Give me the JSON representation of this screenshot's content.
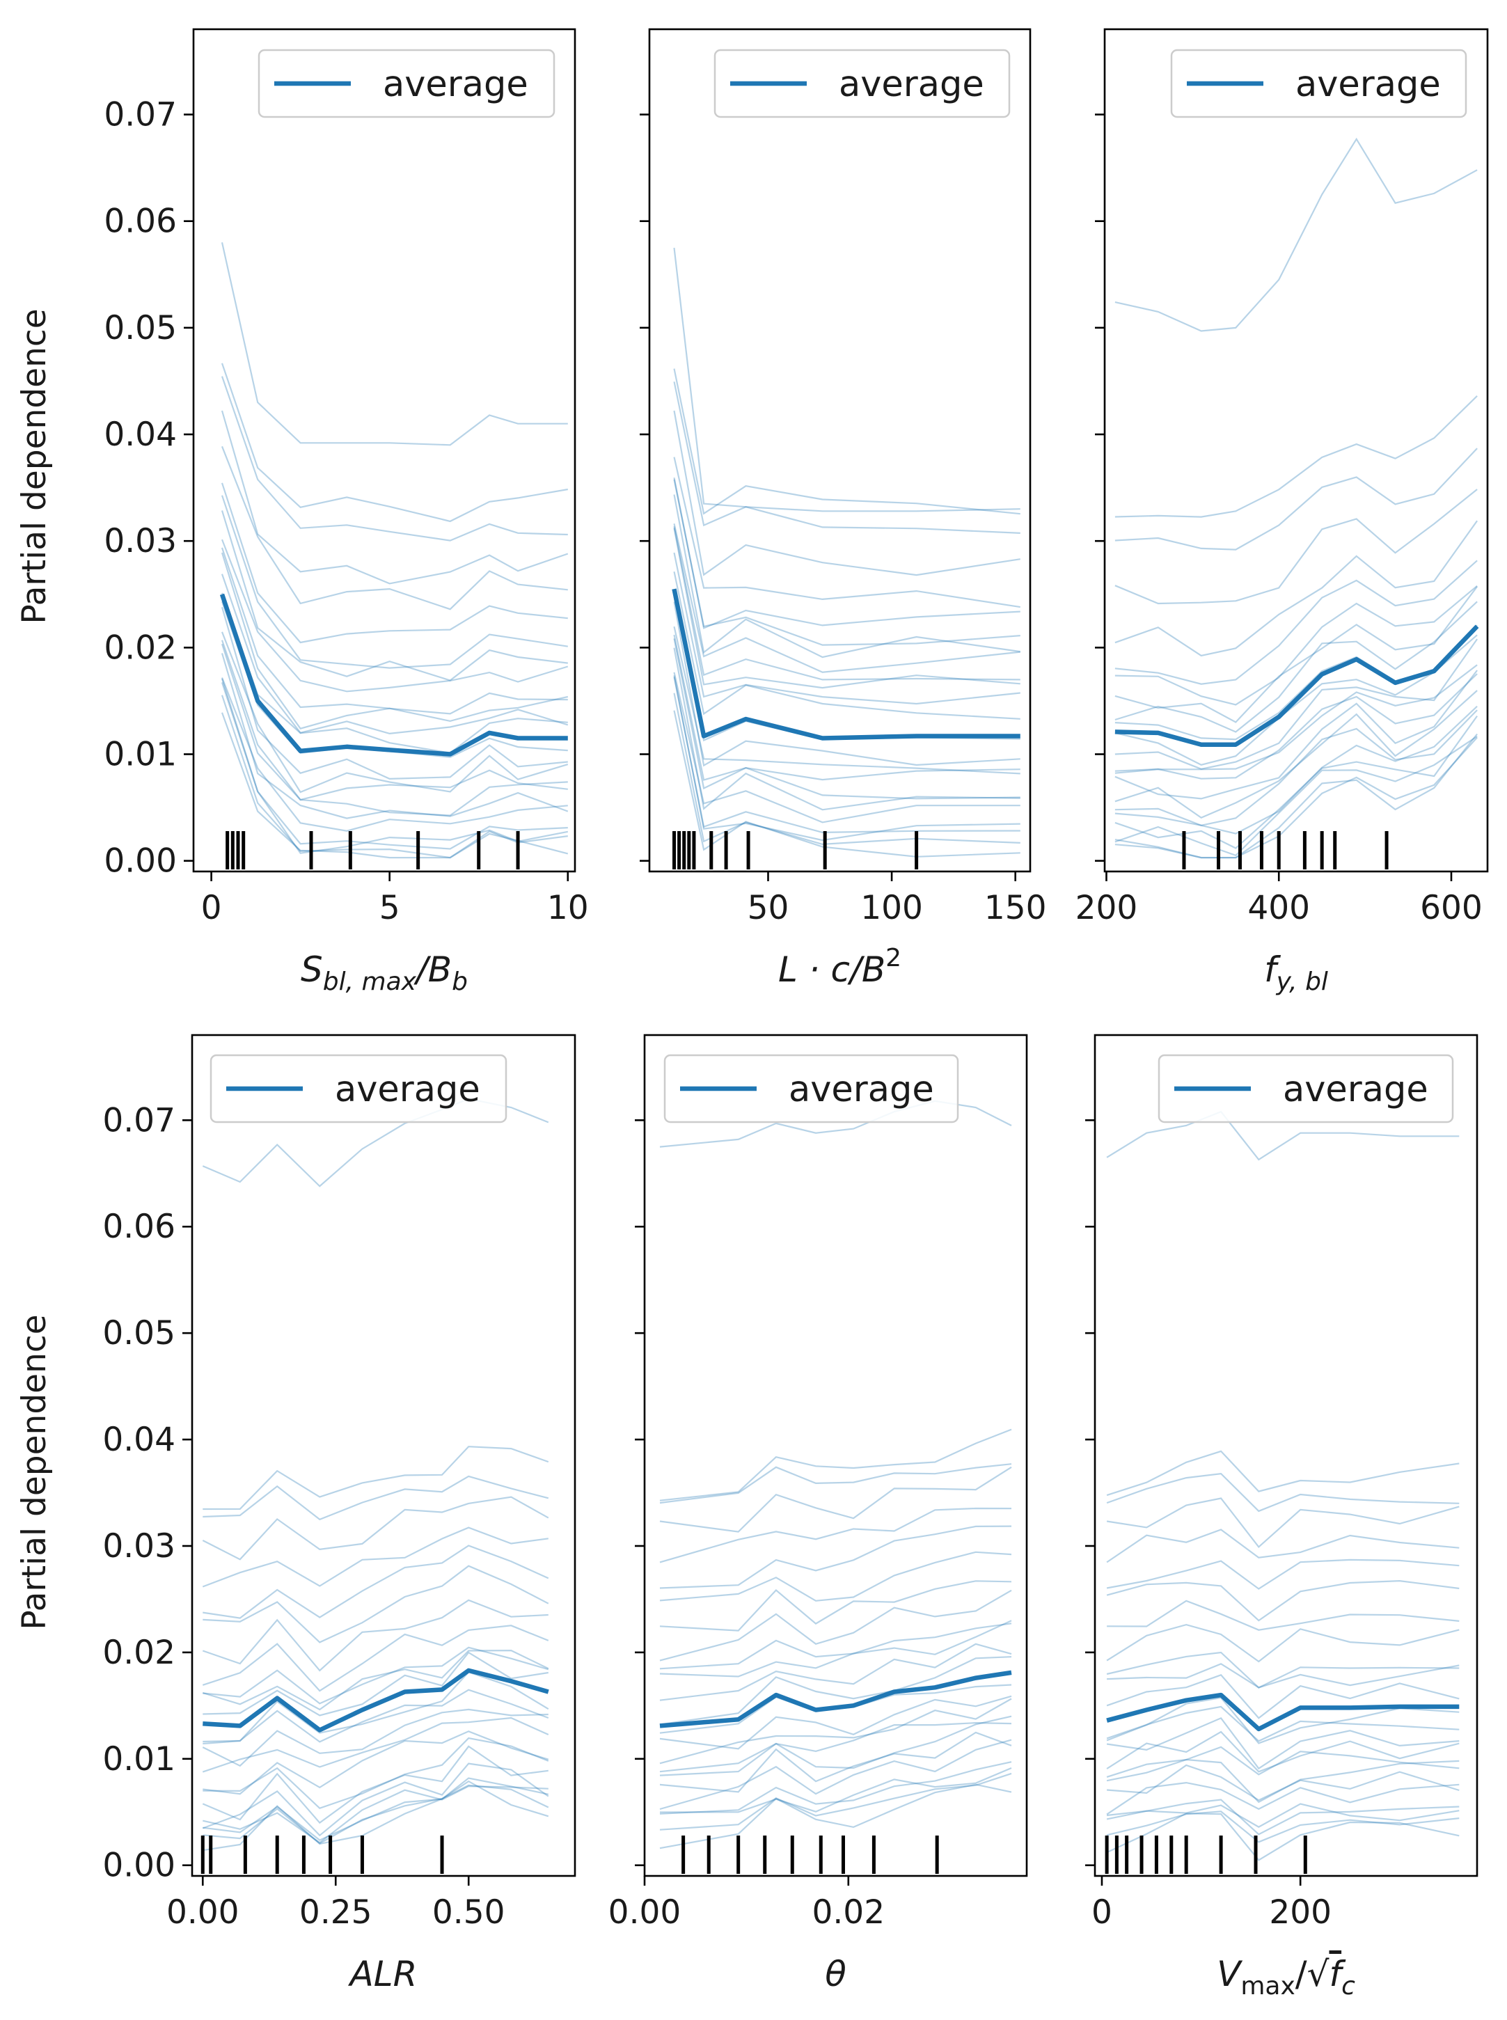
{
  "colors": {
    "line": "#1f77b4",
    "axes": "#000000",
    "rug": "#000000",
    "legend_border": "#cccccc"
  },
  "chart_data": [
    {
      "type": "line",
      "title": "",
      "xlabel": "S_bl,max / B_b",
      "xlabel_parts": {
        "base": "S",
        "sub": "bl, max",
        "mid": "/B",
        "sub2": "b"
      },
      "ylabel": "Partial dependence",
      "xlim": [
        -0.5,
        10.2
      ],
      "ylim": [
        -0.001,
        0.078
      ],
      "xticks": [
        0,
        5,
        10
      ],
      "xtick_labels": [
        "0",
        "5",
        "10"
      ],
      "yticks": [
        0,
        0.01,
        0.02,
        0.03,
        0.04,
        0.05,
        0.06,
        0.07
      ],
      "ytick_labels": [
        "0.00",
        "0.01",
        "0.02",
        "0.03",
        "0.04",
        "0.05",
        "0.06",
        "0.07"
      ],
      "legend": [
        "average"
      ],
      "x": [
        0.3,
        1.3,
        2.5,
        3.8,
        5.0,
        6.7,
        7.8,
        8.6,
        10.0
      ],
      "average": [
        0.025,
        0.015,
        0.0103,
        0.0107,
        0.0104,
        0.01,
        0.012,
        0.0115,
        0.0115
      ],
      "ice_top": [
        0.058,
        0.043,
        0.0392,
        0.0392,
        0.0392,
        0.039,
        0.0418,
        0.041,
        0.041
      ],
      "ice_offsets": [
        0.0225,
        0.02,
        0.0165,
        0.0145,
        0.011,
        0.0085,
        0.0075,
        0.006,
        0.0045,
        0.003,
        0.002,
        0.001,
        -0.001,
        -0.002,
        -0.003,
        -0.004,
        -0.005,
        -0.006,
        -0.007,
        -0.008,
        -0.0088,
        -0.0095,
        -0.0102
      ],
      "rug": [
        0.45,
        0.6,
        0.75,
        0.9,
        2.8,
        3.9,
        5.8,
        7.5,
        8.6
      ]
    },
    {
      "type": "line",
      "title": "",
      "xlabel": "L · c / B²",
      "xlabel_parts": {
        "base": "L · c/B",
        "sup": "2"
      },
      "ylabel": "",
      "xlim": [
        2.0,
        156.0
      ],
      "ylim": [
        -0.001,
        0.078
      ],
      "xticks": [
        50,
        100,
        150
      ],
      "xtick_labels": [
        "50",
        "100",
        "150"
      ],
      "yticks": [
        0,
        0.01,
        0.02,
        0.03,
        0.04,
        0.05,
        0.06,
        0.07
      ],
      "ytick_labels": [],
      "legend": [
        "average"
      ],
      "x": [
        12,
        24,
        41,
        72,
        110,
        152
      ],
      "average": [
        0.0255,
        0.0117,
        0.0133,
        0.0115,
        0.0117,
        0.0117
      ],
      "ice_top": [
        0.0575,
        0.0335,
        0.0332,
        0.0328,
        0.0328,
        0.033
      ],
      "ice_offsets": [
        0.0215,
        0.019,
        0.016,
        0.013,
        0.011,
        0.0095,
        0.0085,
        0.007,
        0.006,
        0.0048,
        0.0035,
        0.0025,
        -0.001,
        -0.002,
        -0.003,
        -0.004,
        -0.005,
        -0.006,
        -0.007,
        -0.008,
        -0.009,
        -0.0098,
        -0.0105
      ],
      "rug": [
        12,
        14,
        16,
        18,
        20,
        27,
        33,
        42,
        73,
        110
      ]
    },
    {
      "type": "line",
      "title": "",
      "xlabel": "f_y,bl",
      "xlabel_parts": {
        "base": "f",
        "sub": "y, bl"
      },
      "ylabel": "",
      "xlim": [
        198.0,
        642.0
      ],
      "ylim": [
        -0.001,
        0.078
      ],
      "xticks": [
        200,
        400,
        600
      ],
      "xtick_labels": [
        "200",
        "400",
        "600"
      ],
      "yticks": [
        0,
        0.01,
        0.02,
        0.03,
        0.04,
        0.05,
        0.06,
        0.07
      ],
      "ytick_labels": [],
      "legend": [
        "average"
      ],
      "x": [
        210,
        260,
        310,
        350,
        400,
        450,
        490,
        535,
        580,
        630
      ],
      "average": [
        0.0121,
        0.012,
        0.0109,
        0.0109,
        0.0135,
        0.0175,
        0.0189,
        0.0167,
        0.0178,
        0.022
      ],
      "ice_top": [
        0.0524,
        0.0515,
        0.0497,
        0.05,
        0.0545,
        0.0625,
        0.0677,
        0.0617,
        0.0626,
        0.0648
      ],
      "ice_offsets": [
        0.021,
        0.0175,
        0.013,
        0.009,
        0.0065,
        0.0045,
        0.003,
        0.002,
        0.001,
        -0.001,
        -0.002,
        -0.003,
        -0.004,
        -0.005,
        -0.006,
        -0.007,
        -0.008,
        -0.009,
        -0.0095,
        -0.0103,
        -0.011
      ],
      "rug": [
        290,
        330,
        355,
        380,
        400,
        430,
        450,
        465,
        525
      ]
    },
    {
      "type": "line",
      "title": "",
      "xlabel": "ALR",
      "xlabel_parts": {
        "base": "ALR"
      },
      "ylabel": "Partial dependence",
      "xlim": [
        -0.02,
        0.7
      ],
      "ylim": [
        -0.001,
        0.078
      ],
      "xticks": [
        0.0,
        0.25,
        0.5
      ],
      "xtick_labels": [
        "0.00",
        "0.25",
        "0.50"
      ],
      "yticks": [
        0,
        0.01,
        0.02,
        0.03,
        0.04,
        0.05,
        0.06,
        0.07
      ],
      "ytick_labels": [
        "0.00",
        "0.01",
        "0.02",
        "0.03",
        "0.04",
        "0.05",
        "0.06",
        "0.07"
      ],
      "legend": [
        "average"
      ],
      "x": [
        0.0,
        0.07,
        0.14,
        0.22,
        0.3,
        0.38,
        0.45,
        0.5,
        0.58,
        0.65
      ],
      "average": [
        0.0133,
        0.0131,
        0.0157,
        0.0127,
        0.0146,
        0.0163,
        0.0165,
        0.0183,
        0.0173,
        0.0163
      ],
      "ice_top": [
        0.0657,
        0.0642,
        0.0677,
        0.0638,
        0.0673,
        0.0697,
        0.071,
        0.072,
        0.0712,
        0.0698
      ],
      "ice_offsets": [
        0.021,
        0.019,
        0.0165,
        0.0135,
        0.011,
        0.009,
        0.0065,
        0.0045,
        0.003,
        0.002,
        0.001,
        -0.001,
        -0.002,
        -0.003,
        -0.004,
        -0.0055,
        -0.007,
        -0.008,
        -0.009,
        -0.0095,
        -0.01,
        -0.0105,
        -0.011
      ],
      "rug": [
        0.0,
        0.015,
        0.08,
        0.14,
        0.19,
        0.24,
        0.3,
        0.45
      ]
    },
    {
      "type": "line",
      "title": "",
      "xlabel": "θ",
      "xlabel_parts": {
        "base": "θ"
      },
      "ylabel": "",
      "xlim": [
        0.0,
        0.0375
      ],
      "ylim": [
        -0.001,
        0.078
      ],
      "xticks": [
        0.0,
        0.02
      ],
      "xtick_labels": [
        "0.00",
        "0.02"
      ],
      "yticks": [
        0,
        0.01,
        0.02,
        0.03,
        0.04,
        0.05,
        0.06,
        0.07
      ],
      "ytick_labels": [],
      "legend": [
        "average"
      ],
      "x": [
        0.0015,
        0.0092,
        0.0129,
        0.0168,
        0.0205,
        0.0245,
        0.0285,
        0.0325,
        0.036
      ],
      "average": [
        0.0131,
        0.0137,
        0.016,
        0.0146,
        0.015,
        0.0163,
        0.0167,
        0.0176,
        0.0181
      ],
      "ice_top": [
        0.0675,
        0.0682,
        0.0697,
        0.0688,
        0.0692,
        0.0708,
        0.0718,
        0.0712,
        0.0695
      ],
      "ice_offsets": [
        0.022,
        0.0205,
        0.0185,
        0.016,
        0.0135,
        0.011,
        0.009,
        0.007,
        0.0055,
        0.004,
        0.0025,
        0.001,
        -0.001,
        -0.002,
        -0.003,
        -0.004,
        -0.005,
        -0.006,
        -0.007,
        -0.008,
        -0.009,
        -0.0098,
        -0.0106
      ],
      "rug": [
        0.0038,
        0.0063,
        0.0092,
        0.0118,
        0.0145,
        0.0173,
        0.0195,
        0.0225,
        0.0287
      ]
    },
    {
      "type": "line",
      "title": "",
      "xlabel": "V_max / √f_c",
      "xlabel_parts": {
        "base": "V",
        "sub": "max",
        "mid": "/√",
        "rad": "f",
        "sub2": "c"
      },
      "ylabel": "",
      "xlim": [
        -7.0,
        378.0
      ],
      "ylim": [
        -0.001,
        0.078
      ],
      "xticks": [
        0,
        200
      ],
      "xtick_labels": [
        "0",
        "200"
      ],
      "yticks": [
        0,
        0.01,
        0.02,
        0.03,
        0.04,
        0.05,
        0.06,
        0.07
      ],
      "ytick_labels": [],
      "legend": [
        "average"
      ],
      "x": [
        5,
        45,
        85,
        120,
        158,
        200,
        250,
        300,
        360
      ],
      "average": [
        0.0136,
        0.0146,
        0.0155,
        0.016,
        0.0128,
        0.0148,
        0.0148,
        0.0149,
        0.0149
      ],
      "ice_top": [
        0.0665,
        0.0688,
        0.0695,
        0.0708,
        0.0663,
        0.0688,
        0.0688,
        0.0685,
        0.0685
      ],
      "ice_offsets": [
        0.022,
        0.02,
        0.018,
        0.0155,
        0.013,
        0.011,
        0.0085,
        0.0065,
        0.0045,
        0.003,
        0.0015,
        -0.001,
        -0.002,
        -0.003,
        -0.004,
        -0.005,
        -0.006,
        -0.007,
        -0.008,
        -0.009,
        -0.0098,
        -0.0108,
        -0.0115
      ],
      "rug": [
        5,
        15,
        25,
        40,
        55,
        70,
        85,
        120,
        155,
        205
      ]
    }
  ]
}
